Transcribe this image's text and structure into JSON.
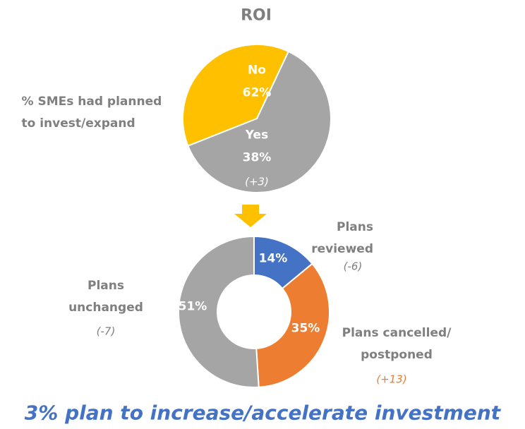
{
  "chart_data": [
    {
      "type": "pie",
      "title": "ROI",
      "label": "% SMEs had planned to invest/expand",
      "categories": [
        "No",
        "Yes"
      ],
      "values": [
        62,
        38
      ],
      "value_labels": [
        "62%",
        "38%"
      ],
      "colors": [
        "#a5a5a5",
        "#ffc000"
      ],
      "changes": [
        null,
        "(+3)"
      ],
      "change_colors": [
        null,
        "#ffffff"
      ]
    },
    {
      "type": "donut",
      "categories": [
        "Plans reviewed",
        "Plans cancelled/ postponed",
        "Plans unchanged"
      ],
      "values": [
        14,
        35,
        51
      ],
      "value_labels": [
        "14%",
        "35%",
        "51%"
      ],
      "colors": [
        "#4472c4",
        "#ed7d31",
        "#a5a5a5"
      ],
      "changes": [
        "(-6)",
        "(+13)",
        "(-7)"
      ],
      "change_colors": [
        "#7f7f7f",
        "#ed7d31",
        "#7f7f7f"
      ],
      "annotation": "3% plan to increase/accelerate investment"
    }
  ]
}
